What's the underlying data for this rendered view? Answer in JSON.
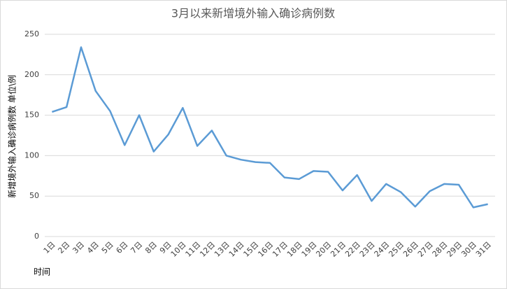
{
  "chart_data": {
    "type": "line",
    "title": "3月以来新增境外输入确诊病例数",
    "x_label": "时间",
    "y_label": "新增境外输入确诊病例数 单位\\例",
    "categories": [
      "1日",
      "2日",
      "3日",
      "4日",
      "5日",
      "6日",
      "7日",
      "8日",
      "9日",
      "10日",
      "11日",
      "12日",
      "13日",
      "14日",
      "15日",
      "16日",
      "17日",
      "18日",
      "19日",
      "20日",
      "21日",
      "22日",
      "23日",
      "24日",
      "25日",
      "26日",
      "27日",
      "28日",
      "29日",
      "30日",
      "31日"
    ],
    "series": [
      {
        "name": "新增境外输入确诊病例数",
        "color": "#5b9bd5",
        "values": [
          154,
          160,
          234,
          180,
          155,
          113,
          150,
          105,
          126,
          159,
          112,
          131,
          100,
          95,
          92,
          91,
          73,
          71,
          81,
          80,
          57,
          76,
          44,
          65,
          55,
          37,
          56,
          65,
          64,
          36,
          40
        ]
      }
    ],
    "ylim": [
      0,
      250
    ],
    "yticks": [
      0,
      50,
      100,
      150,
      200,
      250
    ],
    "grid": true
  }
}
